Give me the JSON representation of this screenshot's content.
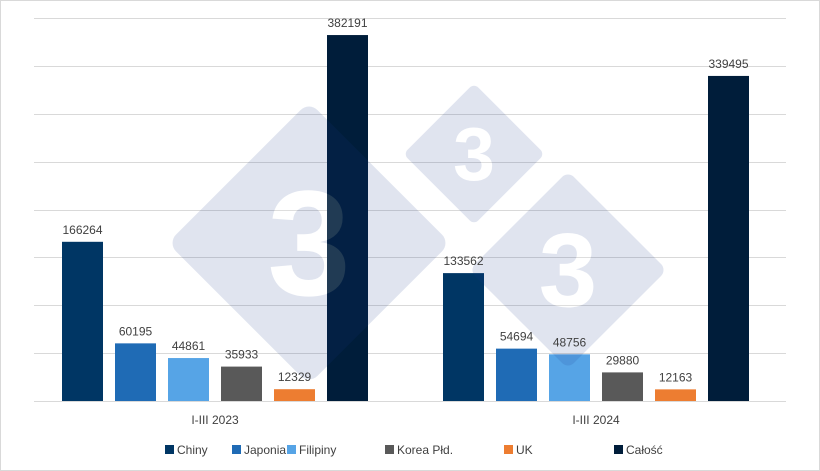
{
  "chart_data": {
    "type": "bar",
    "categories": [
      "I-III 2023",
      "I-III 2024"
    ],
    "series": [
      {
        "name": "Chiny",
        "values": [
          166264,
          133562
        ],
        "color": "#003664"
      },
      {
        "name": "Japonia",
        "values": [
          60195,
          54694
        ],
        "color": "#1f6bb5"
      },
      {
        "name": "Filipiny",
        "values": [
          44861,
          48756
        ],
        "color": "#56a4e6"
      },
      {
        "name": "Korea Płd.",
        "values": [
          35933,
          29880
        ],
        "color": "#595959"
      },
      {
        "name": "UK",
        "values": [
          12329,
          12163
        ],
        "color": "#ed7d31"
      },
      {
        "name": "Całość",
        "values": [
          382191,
          339495
        ],
        "color": "#001d3a"
      }
    ],
    "ylim": [
      0,
      400000
    ],
    "grid": true,
    "legend_position": "bottom",
    "watermark": "3-icon"
  }
}
